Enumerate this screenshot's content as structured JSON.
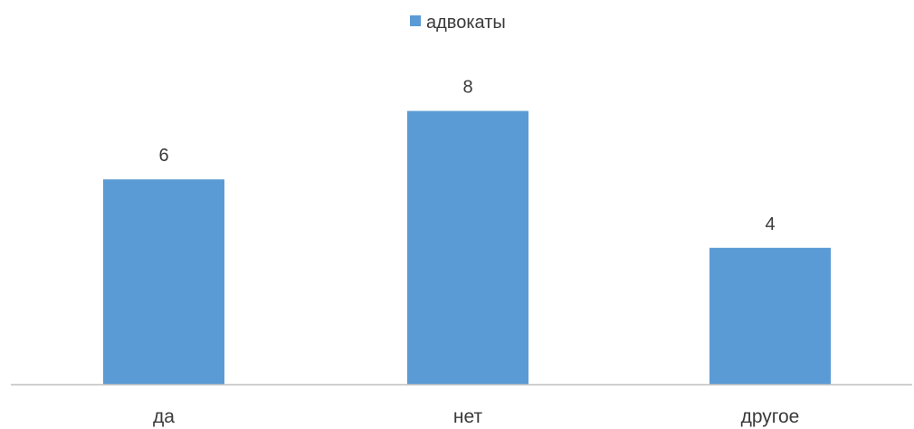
{
  "chart_data": {
    "type": "bar",
    "categories": [
      "да",
      "нет",
      "другое"
    ],
    "series": [
      {
        "name": "адвокаты",
        "values": [
          6,
          8,
          4
        ],
        "color": "#5b9bd5"
      }
    ],
    "ylim": [
      0,
      10
    ],
    "grid": false,
    "legend": "top",
    "data_labels": true
  }
}
